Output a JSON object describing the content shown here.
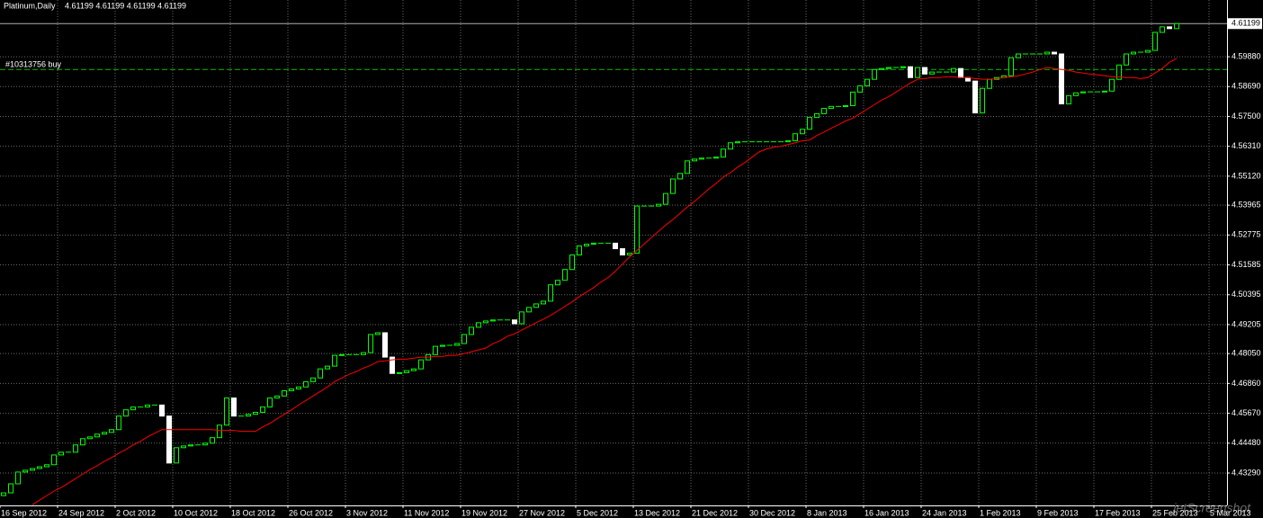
{
  "chart_data": {
    "type": "candlestick",
    "symbol": "Platinum,Daily",
    "quote": "4.61199 4.61199 4.61199 4.61199",
    "watermark": "jetScreenshot",
    "bull_color": "#00ff00",
    "bear_color": "#ffffff",
    "grid": true,
    "ylim": [
      4.42,
      4.6214
    ],
    "yticks": [
      {
        "value": 4.4329,
        "label": "4.43290"
      },
      {
        "value": 4.4448,
        "label": "4.44480"
      },
      {
        "value": 4.4567,
        "label": "4.45670"
      },
      {
        "value": 4.4686,
        "label": "4.46860"
      },
      {
        "value": 4.4805,
        "label": "4.48050"
      },
      {
        "value": 4.49205,
        "label": "4.49205"
      },
      {
        "value": 4.50395,
        "label": "4.50395"
      },
      {
        "value": 4.51585,
        "label": "4.51585"
      },
      {
        "value": 4.52775,
        "label": "4.52775"
      },
      {
        "value": 4.53965,
        "label": "4.53965"
      },
      {
        "value": 4.5512,
        "label": "4.55120"
      },
      {
        "value": 4.5631,
        "label": "4.56310"
      },
      {
        "value": 4.575,
        "label": "4.57500"
      },
      {
        "value": 4.5869,
        "label": "4.58690"
      },
      {
        "value": 4.5988,
        "label": "4.59880"
      }
    ],
    "bid": {
      "value": 4.61199,
      "label": "4.61199"
    },
    "order": {
      "label": "#10313756 buy",
      "value": 4.5937,
      "color": "#00c000"
    },
    "categories": [
      "16 Sep 2012",
      null,
      null,
      null,
      null,
      null,
      null,
      null,
      "24 Sep 2012",
      null,
      null,
      null,
      null,
      null,
      null,
      null,
      "2 Oct 2012",
      null,
      null,
      null,
      null,
      null,
      null,
      null,
      "10 Oct 2012",
      null,
      null,
      null,
      null,
      null,
      null,
      null,
      "18 Oct 2012",
      null,
      null,
      null,
      null,
      null,
      null,
      null,
      "26 Oct 2012",
      null,
      null,
      null,
      null,
      null,
      null,
      null,
      "3 Nov 2012",
      null,
      null,
      null,
      null,
      null,
      null,
      null,
      "11 Nov 2012",
      null,
      null,
      null,
      null,
      null,
      null,
      null,
      "19 Nov 2012",
      null,
      null,
      null,
      null,
      null,
      null,
      null,
      "27 Nov 2012",
      null,
      null,
      null,
      null,
      null,
      null,
      null,
      "5 Dec 2012",
      null,
      null,
      null,
      null,
      null,
      null,
      null,
      "13 Dec 2012",
      null,
      null,
      null,
      null,
      null,
      null,
      null,
      "21 Dec 2012",
      null,
      null,
      null,
      null,
      null,
      null,
      null,
      "30 Dec 2012",
      null,
      null,
      null,
      null,
      null,
      null,
      null,
      "8 Jan 2013",
      null,
      null,
      null,
      null,
      null,
      null,
      null,
      "16 Jan 2013",
      null,
      null,
      null,
      null,
      null,
      null,
      null,
      "24 Jan 2013",
      null,
      null,
      null,
      null,
      null,
      null,
      null,
      "1 Feb 2013",
      null,
      null,
      null,
      null,
      null,
      null,
      null,
      "9 Feb 2013",
      null,
      null,
      null,
      null,
      null,
      null,
      null,
      "17 Feb 2013",
      null,
      null,
      null,
      null,
      null,
      null,
      null,
      "25 Feb 2013",
      null,
      null,
      null,
      null,
      null,
      null,
      null,
      "5 Mar 2013"
    ],
    "open": [
      4.4239,
      4.425,
      4.4286,
      4.4333,
      4.434,
      4.4347,
      4.4354,
      4.4362,
      4.4401,
      4.4412,
      4.4412,
      4.4441,
      4.4466,
      4.4473,
      4.4484,
      4.4491,
      4.4502,
      4.4556,
      4.4581,
      4.4592,
      4.4592,
      4.46,
      4.46,
      4.4556,
      4.4369,
      4.443,
      4.4437,
      4.4441,
      4.4441,
      4.4448,
      4.447,
      4.452,
      4.4628,
      4.4556,
      4.4556,
      4.4563,
      4.4571,
      4.4592,
      4.4628,
      4.4636,
      4.4657,
      4.4664,
      4.4672,
      4.4693,
      4.4708,
      4.4744,
      4.4755,
      4.4798,
      4.4801,
      4.4801,
      4.4801,
      4.4809,
      4.4881,
      4.4888,
      4.4791,
      4.4726,
      4.4729,
      4.4737,
      4.4744,
      4.478,
      4.4801,
      4.4834,
      4.4838,
      4.4838,
      4.4845,
      4.4881,
      4.491,
      4.4928,
      4.4935,
      4.4939,
      4.4939,
      4.4939,
      4.4924,
      4.4971,
      4.4989,
      4.5003,
      4.5014,
      4.5079,
      4.5097,
      4.514,
      4.5198,
      4.5234,
      4.5241,
      4.5245,
      4.5245,
      4.5245,
      4.5223,
      4.5198,
      4.5205,
      4.5393,
      4.5393,
      4.5393,
      4.54,
      4.5443,
      4.5501,
      4.5523,
      4.5573,
      4.558,
      4.5584,
      4.5584,
      4.5588,
      4.562,
      4.5645,
      4.5649,
      4.5649,
      4.5649,
      4.5649,
      4.5649,
      4.5649,
      4.5649,
      4.5653,
      4.5681,
      4.5699,
      4.5746,
      4.5761,
      4.5782,
      4.579,
      4.579,
      4.5793,
      4.5847,
      4.5872,
      4.5898,
      4.5937,
      4.5941,
      4.5945,
      4.5945,
      4.5948,
      4.5905,
      4.5945,
      4.5919,
      4.5927,
      4.5927,
      4.5927,
      4.5941,
      4.5905,
      4.5891,
      4.5764,
      4.5862,
      4.5898,
      4.5905,
      4.5912,
      4.5984,
      4.5999,
      4.5999,
      4.5999,
      4.5999,
      4.6006,
      4.5999,
      4.58,
      4.5833,
      4.5844,
      4.5848,
      4.5848,
      4.5848,
      4.5851,
      4.5898,
      4.5955,
      4.5999,
      4.6006,
      4.6006,
      4.6013,
      4.6085,
      4.6107,
      4.61,
      null,
      null,
      null,
      null,
      null
    ],
    "close": [
      4.425,
      4.4286,
      4.4333,
      4.434,
      4.4347,
      4.4354,
      4.4362,
      4.4401,
      4.4412,
      4.4412,
      4.4441,
      4.4466,
      4.4473,
      4.4484,
      4.4491,
      4.4502,
      4.4556,
      4.4581,
      4.4592,
      4.4592,
      4.46,
      4.46,
      4.4556,
      4.4369,
      4.443,
      4.4437,
      4.4441,
      4.4441,
      4.4448,
      4.447,
      4.452,
      4.4628,
      4.4556,
      4.4556,
      4.4563,
      4.4571,
      4.4592,
      4.4628,
      4.4636,
      4.4657,
      4.4664,
      4.4672,
      4.4693,
      4.4708,
      4.4744,
      4.4755,
      4.4798,
      4.4801,
      4.4801,
      4.4801,
      4.4809,
      4.4881,
      4.4888,
      4.4791,
      4.4726,
      4.4729,
      4.4737,
      4.4744,
      4.478,
      4.4801,
      4.4834,
      4.4838,
      4.4838,
      4.4845,
      4.4881,
      4.491,
      4.4928,
      4.4935,
      4.4939,
      4.4939,
      4.4939,
      4.4924,
      4.4971,
      4.4989,
      4.5003,
      4.5014,
      4.5079,
      4.5097,
      4.514,
      4.5198,
      4.5234,
      4.5241,
      4.5245,
      4.5245,
      4.5245,
      4.5223,
      4.5198,
      4.5205,
      4.5393,
      4.5393,
      4.5393,
      4.54,
      4.5443,
      4.5501,
      4.5523,
      4.5573,
      4.558,
      4.5584,
      4.5584,
      4.5588,
      4.562,
      4.5645,
      4.5649,
      4.5649,
      4.5649,
      4.5649,
      4.5649,
      4.5649,
      4.5649,
      4.5653,
      4.5681,
      4.5699,
      4.5746,
      4.5761,
      4.5782,
      4.579,
      4.579,
      4.5793,
      4.5847,
      4.5872,
      4.5898,
      4.5937,
      4.5941,
      4.5945,
      4.5945,
      4.5948,
      4.5905,
      4.5945,
      4.5919,
      4.5927,
      4.5927,
      4.5927,
      4.5941,
      4.5905,
      4.5891,
      4.5764,
      4.5862,
      4.5898,
      4.5905,
      4.5912,
      4.5984,
      4.5999,
      4.5999,
      4.5999,
      4.5999,
      4.6006,
      4.5999,
      4.58,
      4.5833,
      4.5844,
      4.5848,
      4.5848,
      4.5848,
      4.5851,
      4.5898,
      4.5955,
      4.5999,
      4.6006,
      4.6006,
      4.6013,
      4.6085,
      4.6107,
      4.61,
      4.612,
      null,
      null,
      null,
      null,
      null
    ],
    "ma": {
      "color": "#ff0000",
      "values": [
        null,
        null,
        null,
        null,
        4.4203,
        4.4221,
        4.4239,
        4.4257,
        4.4271,
        4.4289,
        4.4307,
        4.4325,
        4.4343,
        4.4358,
        4.4376,
        4.439,
        4.4408,
        4.4423,
        4.4441,
        4.4455,
        4.4473,
        4.4488,
        4.4502,
        4.4502,
        4.4502,
        4.4502,
        4.4502,
        4.4502,
        4.4502,
        4.4502,
        4.4499,
        4.4499,
        4.4499,
        4.4495,
        4.4495,
        4.4495,
        4.4513,
        4.4527,
        4.4545,
        4.4563,
        4.4581,
        4.46,
        4.4618,
        4.4636,
        4.4654,
        4.4672,
        4.4693,
        4.4708,
        4.4722,
        4.4733,
        4.4747,
        4.4758,
        4.4773,
        4.4776,
        4.478,
        4.4783,
        4.4783,
        4.4787,
        4.4791,
        4.4791,
        4.4794,
        4.4794,
        4.4798,
        4.4798,
        4.4805,
        4.4812,
        4.482,
        4.4827,
        4.4845,
        4.4856,
        4.4874,
        4.4884,
        4.4899,
        4.4913,
        4.4928,
        4.4942,
        4.4957,
        4.4975,
        4.4993,
        4.5011,
        4.5032,
        4.505,
        4.5068,
        4.509,
        4.5108,
        4.5133,
        4.5162,
        4.5191,
        4.5216,
        4.5241,
        4.5267,
        4.5292,
        4.5317,
        4.5339,
        4.5364,
        4.5389,
        4.5411,
        4.5436,
        4.5461,
        4.5483,
        4.5508,
        4.5526,
        4.5548,
        4.5566,
        4.5588,
        4.5609,
        4.562,
        4.5627,
        4.5631,
        4.5638,
        4.5645,
        4.5653,
        4.5656,
        4.5674,
        4.5688,
        4.5703,
        4.5717,
        4.5732,
        4.5743,
        4.5761,
        4.5779,
        4.5797,
        4.5815,
        4.5829,
        4.5847,
        4.5865,
        4.5883,
        4.5898,
        4.5901,
        4.5905,
        4.5905,
        4.5908,
        4.5908,
        4.5905,
        4.5905,
        4.5901,
        4.5898,
        4.5898,
        4.5901,
        4.5905,
        4.5908,
        4.5912,
        4.5919,
        4.5927,
        4.5937,
        4.5945,
        4.5941,
        4.5937,
        4.5934,
        4.5927,
        4.5923,
        4.5919,
        4.5916,
        4.5912,
        4.5908,
        4.5908,
        4.5905,
        4.5905,
        4.5901,
        4.5905,
        4.5923,
        4.5941,
        4.5966,
        4.5981,
        null,
        null,
        null,
        null,
        null
      ]
    }
  }
}
